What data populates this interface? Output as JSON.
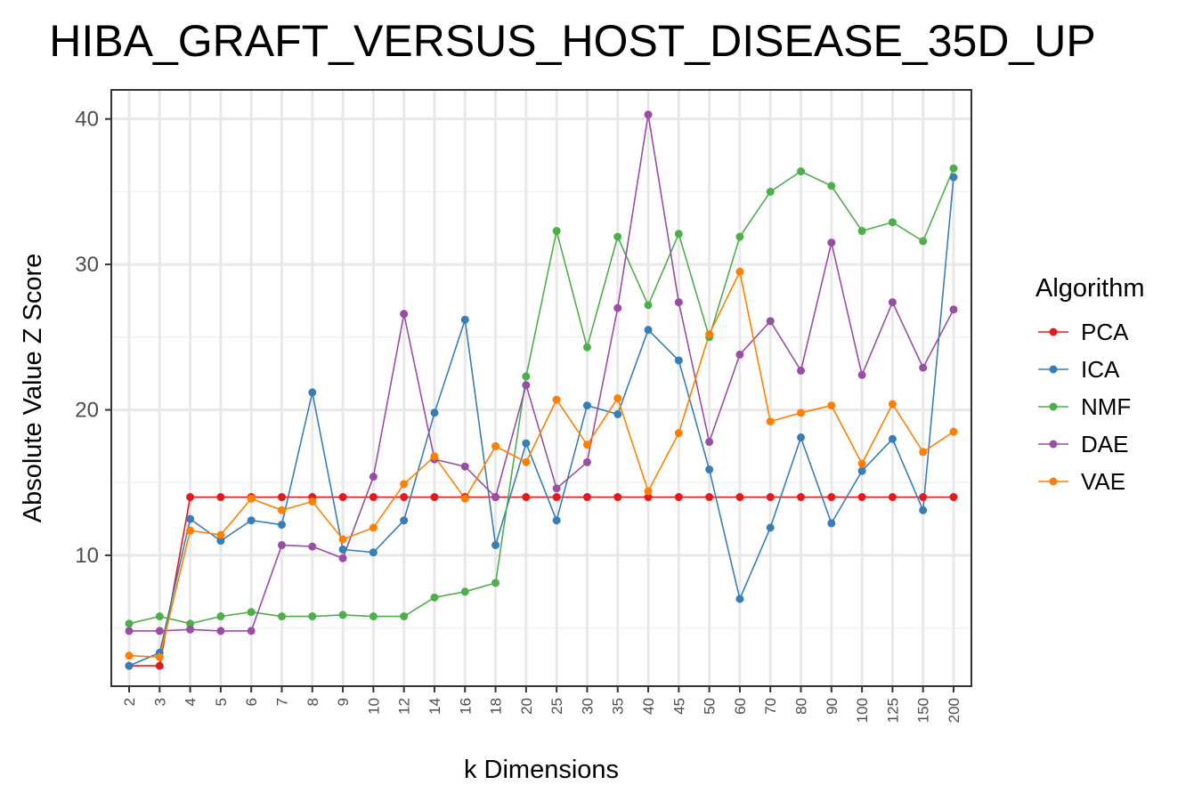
{
  "chart_data": {
    "type": "line",
    "title": "HIBA_GRAFT_VERSUS_HOST_DISEASE_35D_UP",
    "xlabel": "k Dimensions",
    "ylabel": "Absolute Value Z Score",
    "categories": [
      "2",
      "3",
      "4",
      "5",
      "6",
      "7",
      "8",
      "9",
      "10",
      "12",
      "14",
      "16",
      "18",
      "20",
      "25",
      "30",
      "35",
      "40",
      "45",
      "50",
      "60",
      "70",
      "80",
      "90",
      "100",
      "125",
      "150",
      "200"
    ],
    "yticks": [
      10,
      20,
      30,
      40
    ],
    "ylim": [
      1,
      42
    ],
    "grid": true,
    "legend": {
      "title": "Algorithm",
      "position": "right"
    },
    "series": [
      {
        "name": "PCA",
        "color": "#e41a1c",
        "values": [
          2.4,
          2.4,
          14.0,
          14.0,
          14.0,
          14.0,
          14.0,
          14.0,
          14.0,
          14.0,
          14.0,
          14.0,
          14.0,
          14.0,
          14.0,
          14.0,
          14.0,
          14.0,
          14.0,
          14.0,
          14.0,
          14.0,
          14.0,
          14.0,
          14.0,
          14.0,
          14.0,
          14.0
        ]
      },
      {
        "name": "ICA",
        "color": "#377eb8",
        "values": [
          2.4,
          3.3,
          12.5,
          11.0,
          12.4,
          12.1,
          21.2,
          10.4,
          10.2,
          12.4,
          19.8,
          26.2,
          10.7,
          17.7,
          12.4,
          20.3,
          19.7,
          25.5,
          23.4,
          15.9,
          7.0,
          11.9,
          18.1,
          12.2,
          15.8,
          18.0,
          13.1,
          36.0
        ]
      },
      {
        "name": "NMF",
        "color": "#4daf4a",
        "values": [
          5.3,
          5.8,
          5.3,
          5.8,
          6.1,
          5.8,
          5.8,
          5.9,
          5.8,
          5.8,
          7.1,
          7.5,
          8.1,
          22.3,
          32.3,
          24.3,
          31.9,
          27.2,
          32.1,
          25.0,
          31.9,
          35.0,
          36.4,
          35.4,
          32.3,
          32.9,
          31.6,
          36.6
        ]
      },
      {
        "name": "DAE",
        "color": "#984ea3",
        "values": [
          4.8,
          4.8,
          4.9,
          4.8,
          4.8,
          10.7,
          10.6,
          9.8,
          15.4,
          26.6,
          16.6,
          16.1,
          14.0,
          21.7,
          14.6,
          16.4,
          27.0,
          40.3,
          27.4,
          17.8,
          23.8,
          26.1,
          22.7,
          31.5,
          22.4,
          27.4,
          22.9,
          26.9
        ]
      },
      {
        "name": "VAE",
        "color": "#ff7f00",
        "values": [
          3.1,
          3.0,
          11.7,
          11.4,
          13.9,
          13.1,
          13.7,
          11.1,
          11.9,
          14.9,
          16.8,
          13.9,
          17.5,
          16.4,
          20.7,
          17.6,
          20.8,
          14.4,
          18.4,
          25.2,
          29.5,
          19.2,
          19.8,
          20.3,
          16.3,
          20.4,
          17.1,
          18.5
        ]
      }
    ]
  }
}
